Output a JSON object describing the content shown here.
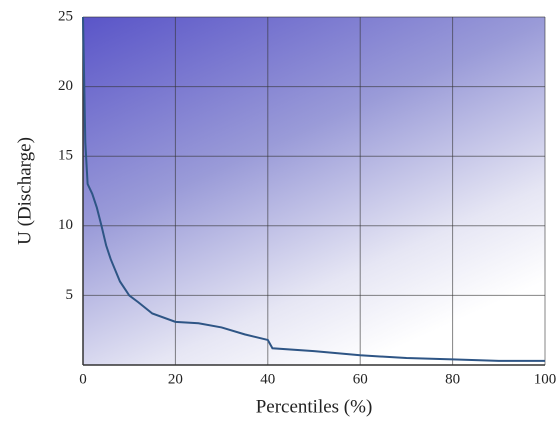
{
  "chart_data": {
    "type": "line",
    "x_label": "Percentiles (%)",
    "y_label": "U (Discharge)",
    "x": [
      0,
      0.5,
      1,
      2,
      3,
      4,
      5,
      6,
      8,
      10,
      12,
      15,
      20,
      25,
      30,
      35,
      40,
      41,
      50,
      60,
      70,
      80,
      90,
      100
    ],
    "series": [
      {
        "color": "#2e5585",
        "values": [
          25,
          16,
          13,
          12.3,
          11.3,
          10,
          8.6,
          7.6,
          6,
          5,
          4.5,
          3.7,
          3.1,
          3,
          2.7,
          2.2,
          1.8,
          1.2,
          1,
          0.7,
          0.5,
          0.4,
          0.3,
          0.3
        ]
      }
    ],
    "xlim": [
      0,
      100
    ],
    "ylim": [
      0,
      25
    ],
    "xticks": [
      0,
      20,
      40,
      60,
      80,
      100
    ],
    "yticks": [
      5,
      10,
      15,
      20,
      25
    ],
    "grid": true
  }
}
